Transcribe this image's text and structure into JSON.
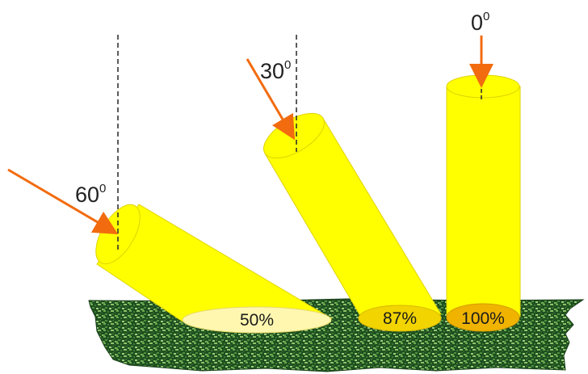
{
  "beams": [
    {
      "id": "60",
      "angle_value": "60",
      "angle_unit": "0",
      "spot_label": "50%"
    },
    {
      "id": "30",
      "angle_value": "30",
      "angle_unit": "0",
      "spot_label": "87%"
    },
    {
      "id": "0",
      "angle_value": "0",
      "angle_unit": "0",
      "spot_label": "100%"
    }
  ],
  "colors": {
    "beam_fill": "#ffff00",
    "beam_stroke": "#e0d200",
    "arrow": "#f26b0e",
    "ground_dark": "#1c4a1c",
    "ground_light": "#6aa84f",
    "spot_60": "#fff7b0",
    "spot_30": "#f2d400",
    "spot_0": "#f0b400"
  }
}
